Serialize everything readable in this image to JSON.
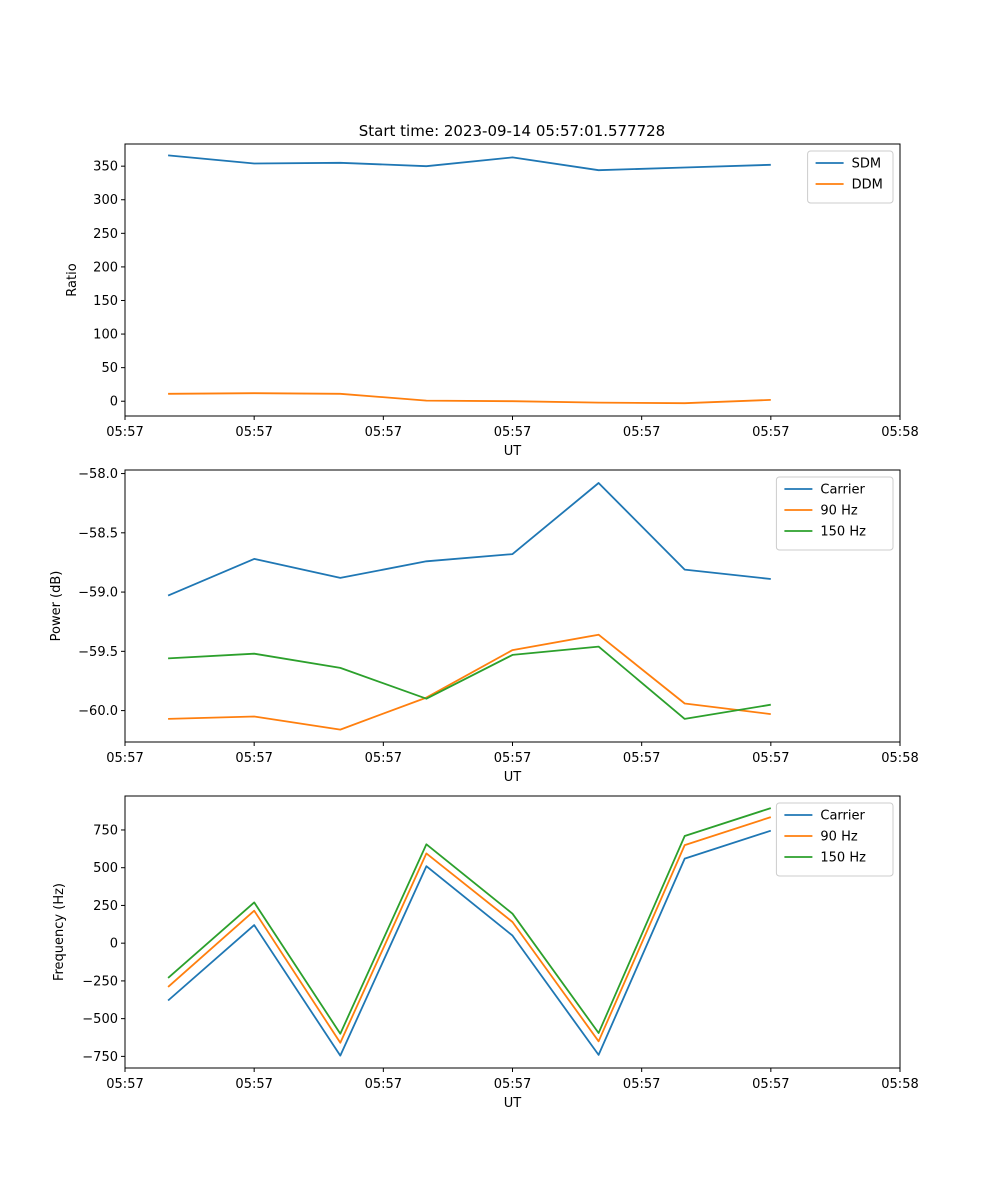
{
  "figure": {
    "title": "Start time: 2023-09-14 05:57:01.577728"
  },
  "chart_data": [
    {
      "type": "line",
      "title": "Start time: 2023-09-14 05:57:01.577728",
      "xlabel": "UT",
      "ylabel": "Ratio",
      "x": [
        1,
        2,
        3,
        4,
        5,
        6,
        7,
        8
      ],
      "xlim": [
        0.5,
        9.5
      ],
      "x_ticks": [
        0.5,
        2,
        3.5,
        5,
        6.5,
        8,
        9.5
      ],
      "x_tick_labels": [
        "05:57",
        "05:57",
        "05:57",
        "05:57",
        "05:57",
        "05:57",
        "05:58"
      ],
      "ylim": [
        -22,
        383
      ],
      "y_ticks": [
        0,
        50,
        100,
        150,
        200,
        250,
        300,
        350
      ],
      "y_tick_labels": [
        "0",
        "50",
        "100",
        "150",
        "200",
        "250",
        "300",
        "350"
      ],
      "legend_position": "top-right",
      "series": [
        {
          "name": "SDM",
          "color": "#1f77b4",
          "values": [
            366,
            354,
            355,
            350,
            363,
            344,
            348,
            352
          ]
        },
        {
          "name": "DDM",
          "color": "#ff7f0e",
          "values": [
            11,
            12,
            11,
            1,
            0,
            -2,
            -3,
            2
          ]
        }
      ]
    },
    {
      "type": "line",
      "title": "",
      "xlabel": "UT",
      "ylabel": "Power (dB)",
      "x": [
        1,
        2,
        3,
        4,
        5,
        6,
        7,
        8
      ],
      "xlim": [
        0.5,
        9.5
      ],
      "x_ticks": [
        0.5,
        2,
        3.5,
        5,
        6.5,
        8,
        9.5
      ],
      "x_tick_labels": [
        "05:57",
        "05:57",
        "05:57",
        "05:57",
        "05:57",
        "05:57",
        "05:58"
      ],
      "ylim": [
        -60.265,
        -57.97
      ],
      "y_ticks": [
        -58.0,
        -58.5,
        -59.0,
        -59.5,
        -60.0
      ],
      "y_tick_labels": [
        "−58.0",
        "−58.5",
        "−59.0",
        "−59.5",
        "−60.0"
      ],
      "legend_position": "top-right",
      "series": [
        {
          "name": "Carrier",
          "color": "#1f77b4",
          "values": [
            -59.03,
            -58.72,
            -58.88,
            -58.74,
            -58.68,
            -58.08,
            -58.81,
            -58.89
          ]
        },
        {
          "name": "90 Hz",
          "color": "#ff7f0e",
          "values": [
            -60.07,
            -60.05,
            -60.16,
            -59.89,
            -59.49,
            -59.36,
            -59.94,
            -60.03
          ]
        },
        {
          "name": "150 Hz",
          "color": "#2ca02c",
          "values": [
            -59.56,
            -59.52,
            -59.64,
            -59.9,
            -59.53,
            -59.46,
            -60.07,
            -59.95
          ]
        }
      ]
    },
    {
      "type": "line",
      "title": "",
      "xlabel": "UT",
      "ylabel": "Frequency (Hz)",
      "x": [
        1,
        2,
        3,
        4,
        5,
        6,
        7,
        8
      ],
      "xlim": [
        0.5,
        9.5
      ],
      "x_ticks": [
        0.5,
        2,
        3.5,
        5,
        6.5,
        8,
        9.5
      ],
      "x_tick_labels": [
        "05:57",
        "05:57",
        "05:57",
        "05:57",
        "05:57",
        "05:57",
        "05:58"
      ],
      "ylim": [
        -827,
        975
      ],
      "y_ticks": [
        750,
        500,
        250,
        0,
        -250,
        -500,
        -750
      ],
      "y_tick_labels": [
        "750",
        "500",
        "250",
        "0",
        "−250",
        "−500",
        "−750"
      ],
      "legend_position": "top-right",
      "series": [
        {
          "name": "Carrier",
          "color": "#1f77b4",
          "values": [
            -380,
            120,
            -745,
            510,
            50,
            -740,
            560,
            745
          ]
        },
        {
          "name": "90 Hz",
          "color": "#ff7f0e",
          "values": [
            -290,
            215,
            -660,
            595,
            140,
            -650,
            650,
            835
          ]
        },
        {
          "name": "150 Hz",
          "color": "#2ca02c",
          "values": [
            -230,
            270,
            -600,
            655,
            195,
            -595,
            710,
            895
          ]
        }
      ]
    }
  ]
}
